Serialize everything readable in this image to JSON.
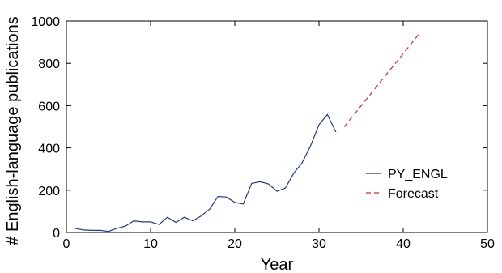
{
  "chart_data": {
    "type": "line",
    "xlabel": "Year",
    "ylabel": "# English-language publications",
    "xlim": [
      0,
      50
    ],
    "ylim": [
      0,
      1000
    ],
    "xticks": [
      0,
      10,
      20,
      30,
      40,
      50
    ],
    "yticks": [
      0,
      200,
      400,
      600,
      800,
      1000
    ],
    "grid": false,
    "legend_position": "lower-right",
    "series": [
      {
        "name": "PY_ENGL",
        "color": "#1f3a93",
        "style": "solid",
        "x": [
          1,
          2,
          3,
          4,
          5,
          6,
          7,
          8,
          9,
          10,
          11,
          12,
          13,
          14,
          15,
          16,
          17,
          18,
          19,
          20,
          21,
          22,
          23,
          24,
          25,
          26,
          27,
          28,
          29,
          30,
          31,
          32
        ],
        "y": [
          20,
          12,
          10,
          10,
          5,
          20,
          30,
          55,
          50,
          50,
          38,
          72,
          48,
          72,
          55,
          78,
          110,
          170,
          168,
          142,
          135,
          232,
          240,
          230,
          195,
          210,
          280,
          330,
          410,
          510,
          558,
          475
        ]
      },
      {
        "name": "Forecast",
        "color": "#d62728",
        "style": "dashed",
        "x": [
          33,
          42
        ],
        "y": [
          500,
          945
        ]
      }
    ]
  }
}
